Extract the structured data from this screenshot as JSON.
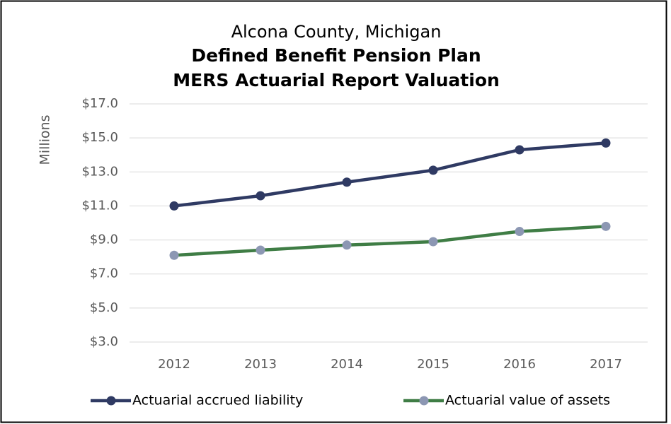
{
  "chart_data": {
    "type": "line",
    "title": [
      "Alcona County, Michigan",
      "Defined Benefit Pension Plan",
      "MERS Actuarial Report Valuation"
    ],
    "y_label": "Millions",
    "categories": [
      "2012",
      "2013",
      "2014",
      "2015",
      "2016",
      "2017"
    ],
    "series": [
      {
        "name": "Actuarial accrued liability",
        "color": "#2f3a63",
        "marker_color": "#2f3a63",
        "values": [
          11.0,
          11.6,
          12.4,
          13.1,
          14.3,
          14.7
        ]
      },
      {
        "name": "Actuarial value of assets",
        "color": "#3f7d45",
        "marker_color": "#8c97b3",
        "values": [
          8.1,
          8.4,
          8.7,
          8.9,
          9.5,
          9.8
        ]
      }
    ],
    "ylim": [
      3,
      17
    ],
    "yticks": [
      {
        "value": 3,
        "label": "$3.0"
      },
      {
        "value": 5,
        "label": "$5.0"
      },
      {
        "value": 7,
        "label": "$7.0"
      },
      {
        "value": 9,
        "label": "$9.0"
      },
      {
        "value": 11,
        "label": "$11.0"
      },
      {
        "value": 13,
        "label": "$13.0"
      },
      {
        "value": 15,
        "label": "$15.0"
      },
      {
        "value": 17,
        "label": "$17.0"
      }
    ],
    "grid": true,
    "legend": "bottom"
  }
}
